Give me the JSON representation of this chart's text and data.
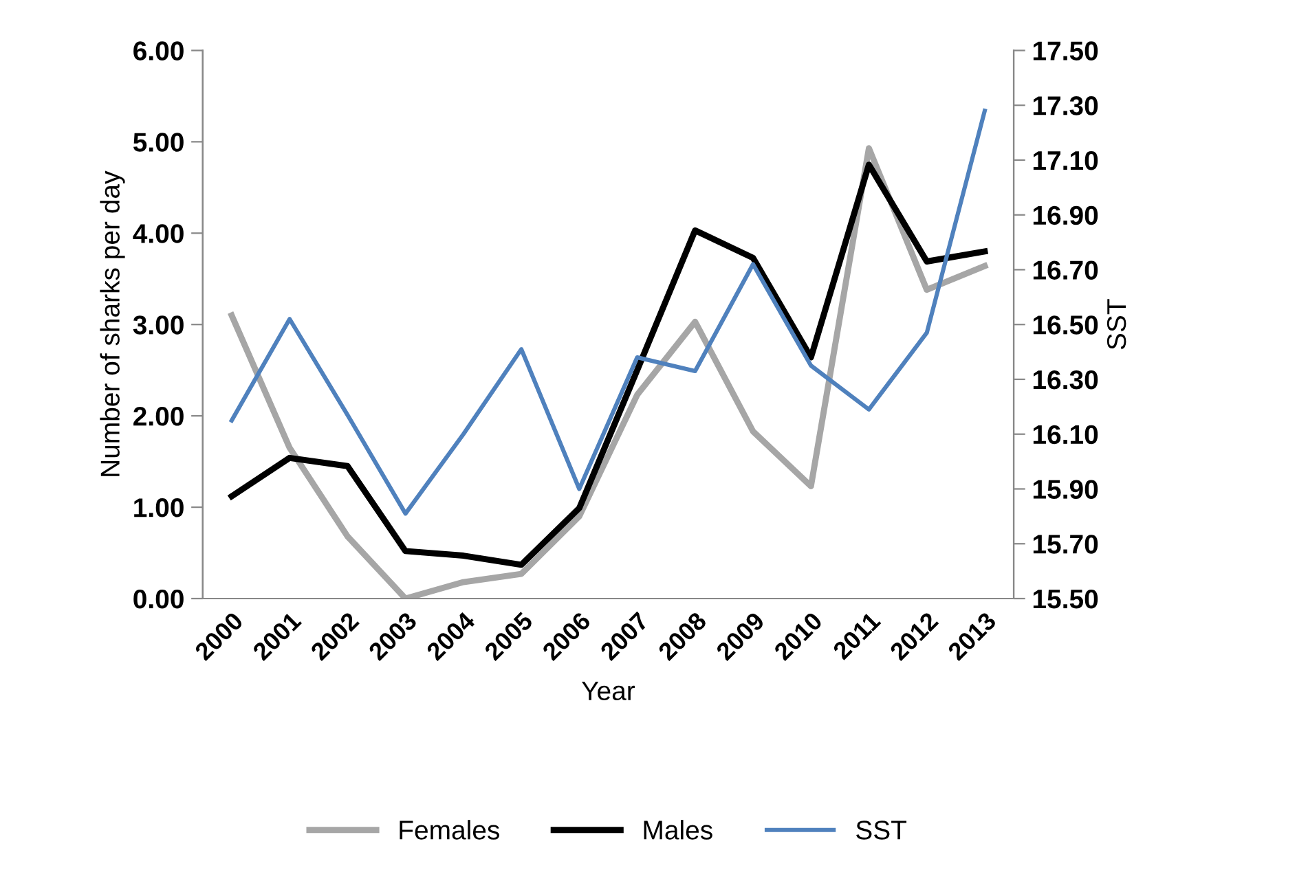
{
  "chart_data": {
    "type": "line",
    "xlabel": "Year",
    "ylabel": "Number of sharks per day",
    "y2label": "SST",
    "categories": [
      "2000",
      "2001",
      "2002",
      "2003",
      "2004",
      "2005",
      "2006",
      "2007",
      "2008",
      "2009",
      "2010",
      "2011",
      "2012",
      "2013"
    ],
    "series": [
      {
        "name": "Females",
        "color": "#a6a6a6",
        "values": [
          3.1,
          1.65,
          0.68,
          0.0,
          0.18,
          0.27,
          0.9,
          2.23,
          3.03,
          1.83,
          1.23,
          4.93,
          3.38,
          3.64
        ]
      },
      {
        "name": "Males",
        "color": "#000000",
        "values": [
          1.12,
          1.54,
          1.45,
          0.52,
          0.47,
          0.37,
          0.99,
          2.5,
          4.03,
          3.73,
          2.64,
          4.75,
          3.69,
          3.8
        ]
      },
      {
        "name": "SST",
        "color": "#4f81bd",
        "axis": "y2",
        "values": [
          16.15,
          16.52,
          16.17,
          15.81,
          16.1,
          16.41,
          15.9,
          16.38,
          16.33,
          16.72,
          16.35,
          16.19,
          16.47,
          17.28
        ]
      }
    ],
    "ylim": [
      0,
      6
    ],
    "yticks": [
      {
        "value": 0,
        "label": "0.00"
      },
      {
        "value": 1,
        "label": "1.00"
      },
      {
        "value": 2,
        "label": "2.00"
      },
      {
        "value": 3,
        "label": "3.00"
      },
      {
        "value": 4,
        "label": "4.00"
      },
      {
        "value": 5,
        "label": "5.00"
      },
      {
        "value": 6,
        "label": "6.00"
      }
    ],
    "y2lim": [
      15.5,
      17.5
    ],
    "y2ticks": [
      {
        "value": 15.5,
        "label": "15.50"
      },
      {
        "value": 15.7,
        "label": "15.70"
      },
      {
        "value": 15.9,
        "label": "15.90"
      },
      {
        "value": 16.1,
        "label": "16.10"
      },
      {
        "value": 16.3,
        "label": "16.30"
      },
      {
        "value": 16.5,
        "label": "16.50"
      },
      {
        "value": 16.7,
        "label": "16.70"
      },
      {
        "value": 16.9,
        "label": "16.90"
      },
      {
        "value": 17.1,
        "label": "17.10"
      },
      {
        "value": 17.3,
        "label": "17.30"
      },
      {
        "value": 17.5,
        "label": "17.50"
      }
    ],
    "legend": "bottom",
    "grid": false,
    "marker": "none",
    "line_style": "solid"
  }
}
